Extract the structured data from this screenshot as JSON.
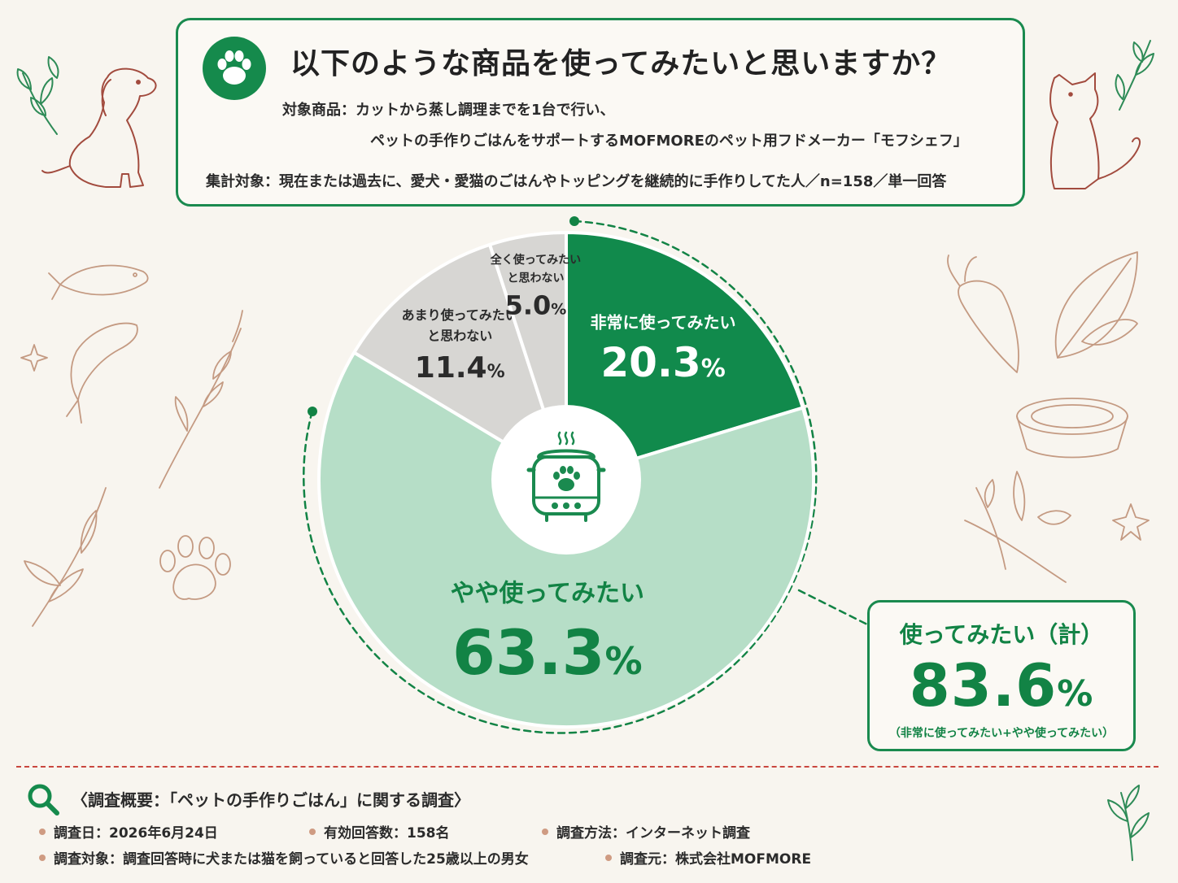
{
  "header": {
    "question": "以下のような商品を使ってみたいと思いますか？",
    "subject_line1": "対象商品：カットから蒸し調理までを1台で行い、",
    "subject_line2": "ペットの手作りごはんをサポートするMOFMOREのペット用フドメーカー「モフシェフ」",
    "target": "集計対象：現在または過去に、愛犬・愛猫のごはんやトッピングを継続的に手作りしてた人／n=158／単一回答",
    "icon": "paw-icon"
  },
  "chart_data": {
    "type": "pie",
    "categories": [
      "非常に使ってみたい",
      "やや使ってみたい",
      "あまり使ってみたいと思わない",
      "全く使ってみたいと思わない"
    ],
    "values": [
      20.3,
      63.3,
      11.4,
      5.0
    ],
    "slices": [
      {
        "label_lines": [
          "非常に使ってみたい"
        ],
        "value": 20.3,
        "display": "20.3",
        "color": "#118a4c",
        "text_color": "#ffffff"
      },
      {
        "label_lines": [
          "やや使ってみたい"
        ],
        "value": 63.3,
        "display": "63.3",
        "color": "#b6dec7",
        "text_color": "#128345"
      },
      {
        "label_lines": [
          "あまり使ってみたい",
          "と思わない"
        ],
        "value": 11.4,
        "display": "11.4",
        "color": "#d7d6d3",
        "text_color": "#2b2b2b"
      },
      {
        "label_lines": [
          "全く使ってみたい",
          "と思わない"
        ],
        "value": 5.0,
        "display": "5.0",
        "color": "#d7d6d3",
        "text_color": "#2b2b2b"
      }
    ],
    "unit": "%",
    "center_icon": "rice-cooker-paw-icon"
  },
  "total": {
    "label": "使ってみたい（計）",
    "value": "83.6",
    "unit": "%",
    "note": "（非常に使ってみたい+やや使ってみたい）"
  },
  "summary": {
    "title": "〈調査概要：「ペットの手作りごはん」に関する調査〉",
    "date": "調査日：2026年6月24日",
    "responses": "有効回答数：158名",
    "method": "調査方法：インターネット調査",
    "subjects": "調査対象：調査回答時に犬または猫を飼っていると回答した25歳以上の男女",
    "org": "調査元：株式会社MOFMORE"
  },
  "colors": {
    "accent": "#1a8a4f",
    "background": "#f8f5ef",
    "divider": "#c9463e"
  }
}
